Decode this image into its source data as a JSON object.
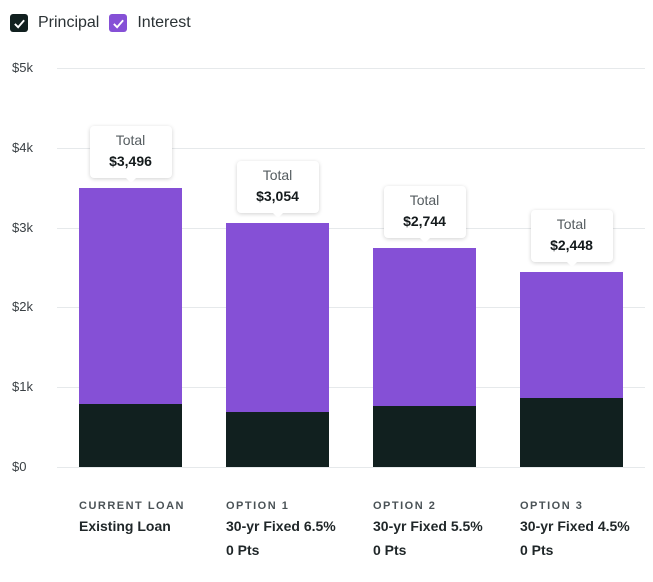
{
  "legend": [
    {
      "label": "Principal",
      "color": "#11201f",
      "checked": true
    },
    {
      "label": "Interest",
      "color": "#8550d6",
      "checked": true
    }
  ],
  "chart_data": {
    "type": "bar",
    "stacked": true,
    "title": "",
    "xlabel": "",
    "ylabel": "",
    "ylim": [
      0,
      5000
    ],
    "yticks": [
      0,
      1000,
      2000,
      3000,
      4000,
      5000
    ],
    "ytick_labels": [
      "$0",
      "$1k",
      "$2k",
      "$3k",
      "$4k",
      "$5k"
    ],
    "grid": true,
    "legend_position": "top-left",
    "categories": [
      "Existing Loan",
      "30-yr Fixed 6.5% 0 Pts",
      "30-yr Fixed 5.5% 0 Pts",
      "30-yr Fixed 4.5% 0 Pts"
    ],
    "series": [
      {
        "name": "Principal",
        "color": "#11201f",
        "values": [
          790,
          690,
          765,
          865
        ]
      },
      {
        "name": "Interest",
        "color": "#8550d6",
        "values": [
          2706,
          2364,
          1979,
          1583
        ]
      }
    ],
    "totals": [
      3496,
      3054,
      2744,
      2448
    ],
    "tooltip_title": "Total",
    "total_labels": [
      "$3,496",
      "$3,054",
      "$2,744",
      "$2,448"
    ],
    "category_labels": [
      {
        "kicker": "CURRENT LOAN",
        "name": "Existing Loan",
        "sub": ""
      },
      {
        "kicker": "OPTION 1",
        "name": "30-yr Fixed 6.5%",
        "sub": "0 Pts"
      },
      {
        "kicker": "OPTION 2",
        "name": "30-yr Fixed 5.5%",
        "sub": "0 Pts"
      },
      {
        "kicker": "OPTION 3",
        "name": "30-yr Fixed 4.5%",
        "sub": "0 Pts"
      }
    ]
  }
}
